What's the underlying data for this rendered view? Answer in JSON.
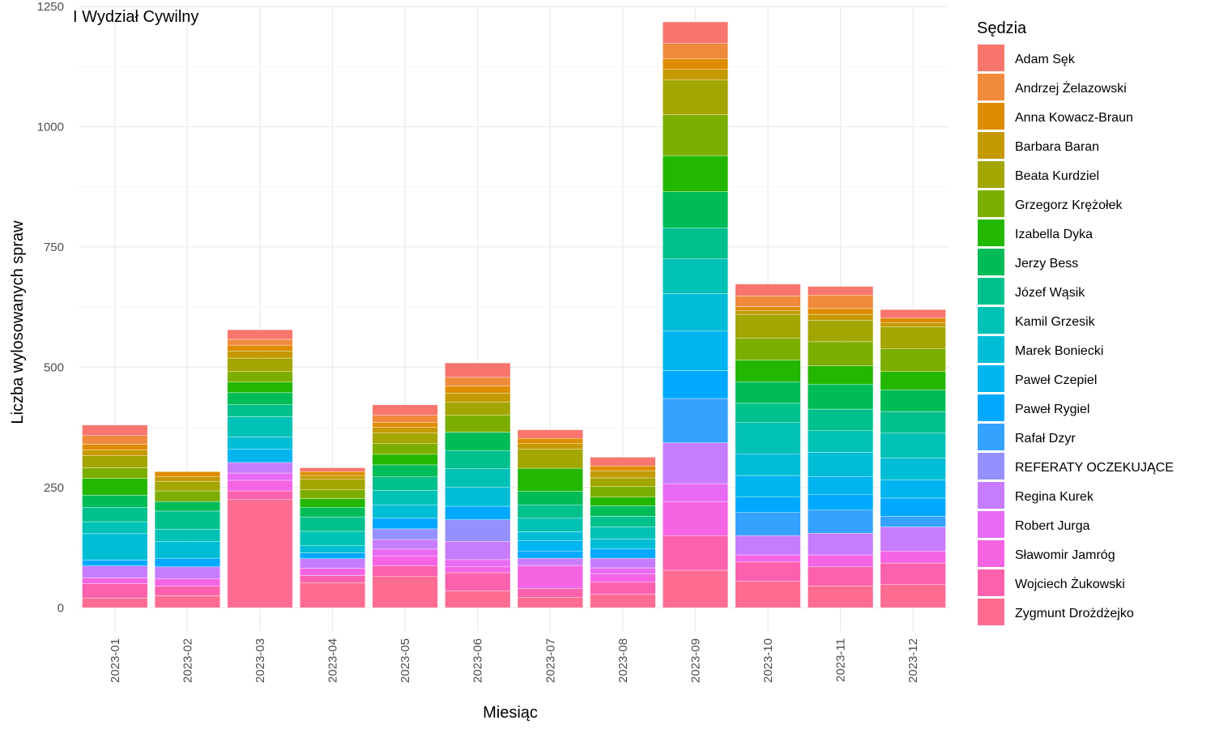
{
  "chart_data": {
    "type": "bar",
    "stacked": true,
    "title": "I Wydział Cywilny",
    "xlabel": "Miesiąc",
    "ylabel": "Liczba wylosowanych spraw",
    "ylim": [
      -50,
      1250
    ],
    "yticks": [
      0,
      250,
      500,
      750,
      1000,
      1250
    ],
    "grid": true,
    "legend_title": "Sędzia",
    "legend_position": "right",
    "categories": [
      "2023-01",
      "2023-02",
      "2023-03",
      "2023-04",
      "2023-05",
      "2023-06",
      "2023-07",
      "2023-08",
      "2023-09",
      "2023-10",
      "2023-11",
      "2023-12"
    ],
    "series": [
      {
        "name": "Zygmunt Drożdżejko",
        "color": "#FF6C91",
        "values": [
          20,
          25,
          225,
          52,
          65,
          35,
          22,
          28,
          78,
          55,
          45,
          48
        ]
      },
      {
        "name": "Wojciech Żukowski",
        "color": "#FC61AE",
        "values": [
          30,
          20,
          18,
          15,
          22,
          38,
          18,
          25,
          72,
          40,
          40,
          45
        ]
      },
      {
        "name": "Sławomir Jamróg",
        "color": "#F564E3",
        "values": [
          12,
          15,
          22,
          15,
          20,
          12,
          48,
          18,
          70,
          15,
          25,
          25
        ]
      },
      {
        "name": "Robert Jurga",
        "color": "#E76BF3",
        "values": [
          0,
          0,
          15,
          0,
          15,
          15,
          0,
          12,
          38,
          0,
          0,
          0
        ]
      },
      {
        "name": "Regina Kurek",
        "color": "#C77CFF",
        "values": [
          25,
          25,
          22,
          20,
          20,
          38,
          15,
          20,
          85,
          40,
          45,
          50
        ]
      },
      {
        "name": "REFERATY OCZEKUJĄCE",
        "color": "#9590FF",
        "values": [
          0,
          0,
          0,
          0,
          22,
          45,
          0,
          0,
          0,
          0,
          0,
          0
        ]
      },
      {
        "name": "Rafał Dzyr",
        "color": "#35A2FF",
        "values": [
          0,
          0,
          0,
          0,
          0,
          0,
          0,
          0,
          92,
          48,
          48,
          22
        ]
      },
      {
        "name": "Paweł Rygiel",
        "color": "#00A9FF",
        "values": [
          12,
          18,
          0,
          12,
          22,
          28,
          15,
          20,
          58,
          32,
          32,
          38
        ]
      },
      {
        "name": "Paweł Czepiel",
        "color": "#00B4EF",
        "values": [
          0,
          0,
          28,
          0,
          0,
          0,
          22,
          0,
          82,
          45,
          38,
          38
        ]
      },
      {
        "name": "Marek Boniecki",
        "color": "#00BDD6",
        "values": [
          55,
          35,
          25,
          15,
          28,
          40,
          18,
          20,
          78,
          45,
          50,
          45
        ]
      },
      {
        "name": "Kamil Grzesik",
        "color": "#00C1B5",
        "values": [
          25,
          25,
          42,
          30,
          30,
          38,
          28,
          25,
          72,
          65,
          45,
          52
        ]
      },
      {
        "name": "Józef Wąsik",
        "color": "#00C08D",
        "values": [
          30,
          38,
          25,
          30,
          28,
          38,
          28,
          22,
          65,
          40,
          45,
          45
        ]
      },
      {
        "name": "Jerzy Bess",
        "color": "#00BC56",
        "values": [
          25,
          20,
          25,
          20,
          25,
          38,
          28,
          22,
          75,
          45,
          52,
          45
        ]
      },
      {
        "name": "Izabella Dyka",
        "color": "#24B700",
        "values": [
          35,
          0,
          22,
          18,
          22,
          0,
          48,
          18,
          75,
          45,
          38,
          38
        ]
      },
      {
        "name": "Grzegorz Krężołek",
        "color": "#7CAE00",
        "values": [
          22,
          22,
          22,
          18,
          22,
          35,
          0,
          22,
          85,
          45,
          50,
          48
        ]
      },
      {
        "name": "Beata Kurdziel",
        "color": "#A3A500",
        "values": [
          25,
          20,
          28,
          22,
          22,
          28,
          40,
          18,
          72,
          50,
          45,
          45
        ]
      },
      {
        "name": "Barbara Baran",
        "color": "#C49A00",
        "values": [
          12,
          10,
          15,
          8,
          12,
          18,
          12,
          15,
          22,
          8,
          12,
          8
        ]
      },
      {
        "name": "Anna Kowacz-Braun",
        "color": "#DE8C00",
        "values": [
          12,
          10,
          12,
          8,
          10,
          15,
          10,
          10,
          22,
          8,
          12,
          10
        ]
      },
      {
        "name": "Andrzej Żelazowski",
        "color": "#F08A3C",
        "values": [
          18,
          0,
          12,
          0,
          15,
          18,
          0,
          0,
          32,
          22,
          28,
          0
        ]
      },
      {
        "name": "Adam Sęk",
        "color": "#F8766D",
        "values": [
          22,
          0,
          20,
          8,
          22,
          30,
          18,
          18,
          45,
          25,
          18,
          18
        ]
      }
    ]
  }
}
